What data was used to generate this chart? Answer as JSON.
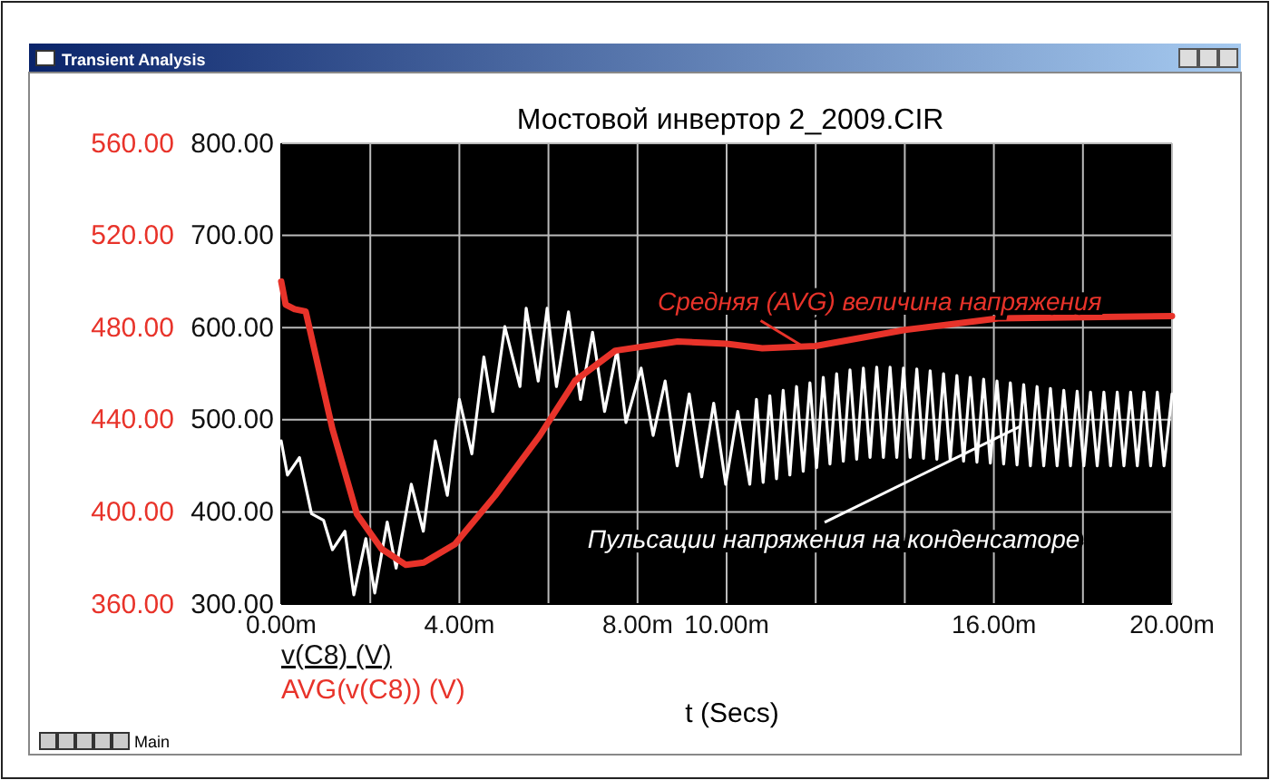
{
  "chart_data": {
    "type": "line",
    "title": "Мостовой инвертор 2_2009.CIR",
    "xlabel": "t (Secs)",
    "xlim": [
      0,
      20
    ],
    "xticks": [
      {
        "value": 0,
        "label": "0.00m"
      },
      {
        "value": 2,
        "label": null
      },
      {
        "value": 4,
        "label": "4.00m"
      },
      {
        "value": 6,
        "label": null
      },
      {
        "value": 8,
        "label": "8.00m"
      },
      {
        "value": 10,
        "label": "10.00m"
      },
      {
        "value": 12,
        "label": null
      },
      {
        "value": 14,
        "label": null
      },
      {
        "value": 16,
        "label": "16.00m"
      },
      {
        "value": 18,
        "label": null
      },
      {
        "value": 20,
        "label": "20.00m"
      }
    ],
    "ylim": [
      300,
      800
    ],
    "yticks": [
      {
        "value": 300,
        "label": "300.00"
      },
      {
        "value": 400,
        "label": "400.00"
      },
      {
        "value": 500,
        "label": "500.00"
      },
      {
        "value": 600,
        "label": "600.00"
      },
      {
        "value": 700,
        "label": "700.00"
      },
      {
        "value": 800,
        "label": "800.00"
      }
    ],
    "y2lim": [
      360,
      560
    ],
    "y2ticks": [
      {
        "value": 360,
        "label": "360.00"
      },
      {
        "value": 400,
        "label": "400.00"
      },
      {
        "value": 440,
        "label": "440.00"
      },
      {
        "value": 480,
        "label": "480.00"
      },
      {
        "value": 520,
        "label": "520.00"
      },
      {
        "value": 560,
        "label": "560.00"
      }
    ],
    "grid": true,
    "legend": "bottom left",
    "line_style": "solid",
    "series": [
      {
        "name": "v(C8) (V)",
        "color": "#ffffff",
        "x": [
          0,
          0.14,
          0.41,
          0.68,
          0.95,
          1.15,
          1.43,
          1.63,
          1.9,
          2.1,
          2.38,
          2.58,
          2.92,
          3.19,
          3.46,
          3.73,
          4.0,
          4.28,
          4.55,
          4.75,
          5.02,
          5.36,
          5.5,
          5.77,
          5.97,
          6.18,
          6.45,
          6.72,
          6.99,
          7.26,
          7.54,
          7.74,
          8.08,
          8.35,
          8.62,
          8.89,
          9.16,
          9.44,
          9.71,
          9.98,
          10.25,
          10.52,
          10.67,
          10.82,
          10.97,
          11.12,
          11.27,
          11.42,
          11.57,
          11.72,
          11.87,
          12.02,
          12.17,
          12.32,
          12.47,
          12.62,
          12.77,
          12.92,
          13.07,
          13.22,
          13.37,
          13.52,
          13.67,
          13.82,
          13.97,
          14.12,
          14.27,
          14.42,
          14.57,
          14.72,
          14.87,
          15.02,
          15.17,
          15.32,
          15.47,
          15.62,
          15.77,
          15.92,
          16.07,
          16.22,
          16.37,
          16.52,
          16.67,
          16.82,
          16.97,
          17.12,
          17.27,
          17.42,
          17.57,
          17.72,
          17.87,
          18.02,
          18.17,
          18.32,
          18.47,
          18.62,
          18.77,
          18.92,
          19.07,
          19.22,
          19.37,
          19.52,
          19.67,
          19.82,
          20
        ],
        "values": [
          477,
          440,
          459,
          398,
          391,
          359,
          379,
          310,
          371,
          312,
          389,
          339,
          430,
          379,
          477,
          418,
          522,
          463,
          568,
          509,
          601,
          536,
          621,
          542,
          621,
          536,
          617,
          522,
          595,
          509,
          576,
          497,
          556,
          483,
          542,
          450,
          528,
          438,
          518,
          430,
          509,
          430,
          522,
          432,
          526,
          436,
          532,
          440,
          536,
          444,
          540,
          448,
          546,
          452,
          550,
          455,
          554,
          457,
          556,
          459,
          557,
          459,
          557,
          459,
          556,
          459,
          555,
          458,
          553,
          457,
          550,
          456,
          548,
          455,
          546,
          454,
          544,
          453,
          542,
          452,
          540,
          451,
          538,
          450,
          536,
          450,
          534,
          450,
          532,
          450,
          531,
          450,
          530,
          450,
          530,
          450,
          530,
          450,
          530,
          450,
          530,
          450,
          530,
          450,
          528
        ]
      },
      {
        "name": "AVG(v(C8)) (V)",
        "color": "#e8332a",
        "axis": "y2",
        "x": [
          0,
          0.1,
          0.3,
          0.55,
          1.15,
          1.7,
          2.25,
          2.8,
          3.2,
          3.9,
          4.8,
          5.8,
          6.6,
          7.5,
          8.9,
          10,
          10.8,
          12,
          14,
          16.1,
          20
        ],
        "values": [
          500,
          490,
          488,
          487,
          436,
          399,
          384,
          377,
          378,
          386,
          407,
          433,
          457,
          470,
          474,
          473,
          471,
          472,
          479,
          484,
          485
        ]
      }
    ],
    "annotations": [
      {
        "text": "Средняя (AVG) величина напряжения",
        "x": 11.7,
        "y": 580
      },
      {
        "text": "Пульсации напряжения на конденсаторе",
        "x": 16.6,
        "y": 493
      },
      "Transient Analysis",
      "Main"
    ]
  }
}
